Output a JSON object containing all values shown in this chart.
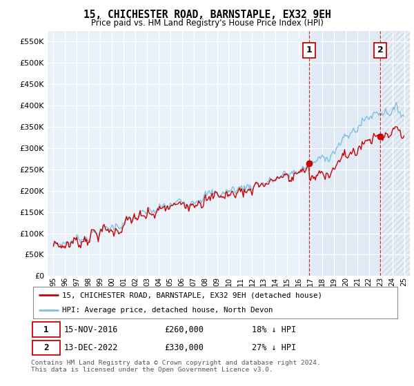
{
  "title": "15, CHICHESTER ROAD, BARNSTAPLE, EX32 9EH",
  "subtitle": "Price paid vs. HM Land Registry's House Price Index (HPI)",
  "legend_line1": "15, CHICHESTER ROAD, BARNSTAPLE, EX32 9EH (detached house)",
  "legend_line2": "HPI: Average price, detached house, North Devon",
  "annotation1_label": "1",
  "annotation1_date": "15-NOV-2016",
  "annotation1_price": 260000,
  "annotation1_note": "18% ↓ HPI",
  "annotation2_label": "2",
  "annotation2_date": "13-DEC-2022",
  "annotation2_price": 330000,
  "annotation2_note": "27% ↓ HPI",
  "footer": "Contains HM Land Registry data © Crown copyright and database right 2024.\nThis data is licensed under the Open Government Licence v3.0.",
  "hpi_color": "#7fbfdf",
  "price_color": "#cc0000",
  "vline_color": "#cc0000",
  "bg_color": "#e8f0f8",
  "bg_color2": "#dce8f4",
  "ylim": [
    0,
    575000
  ],
  "yticks": [
    0,
    50000,
    100000,
    150000,
    200000,
    250000,
    300000,
    350000,
    400000,
    450000,
    500000,
    550000
  ],
  "sale1_year": 2016.875,
  "sale2_year": 2022.958,
  "sale1_price": 260000,
  "sale2_price": 330000
}
